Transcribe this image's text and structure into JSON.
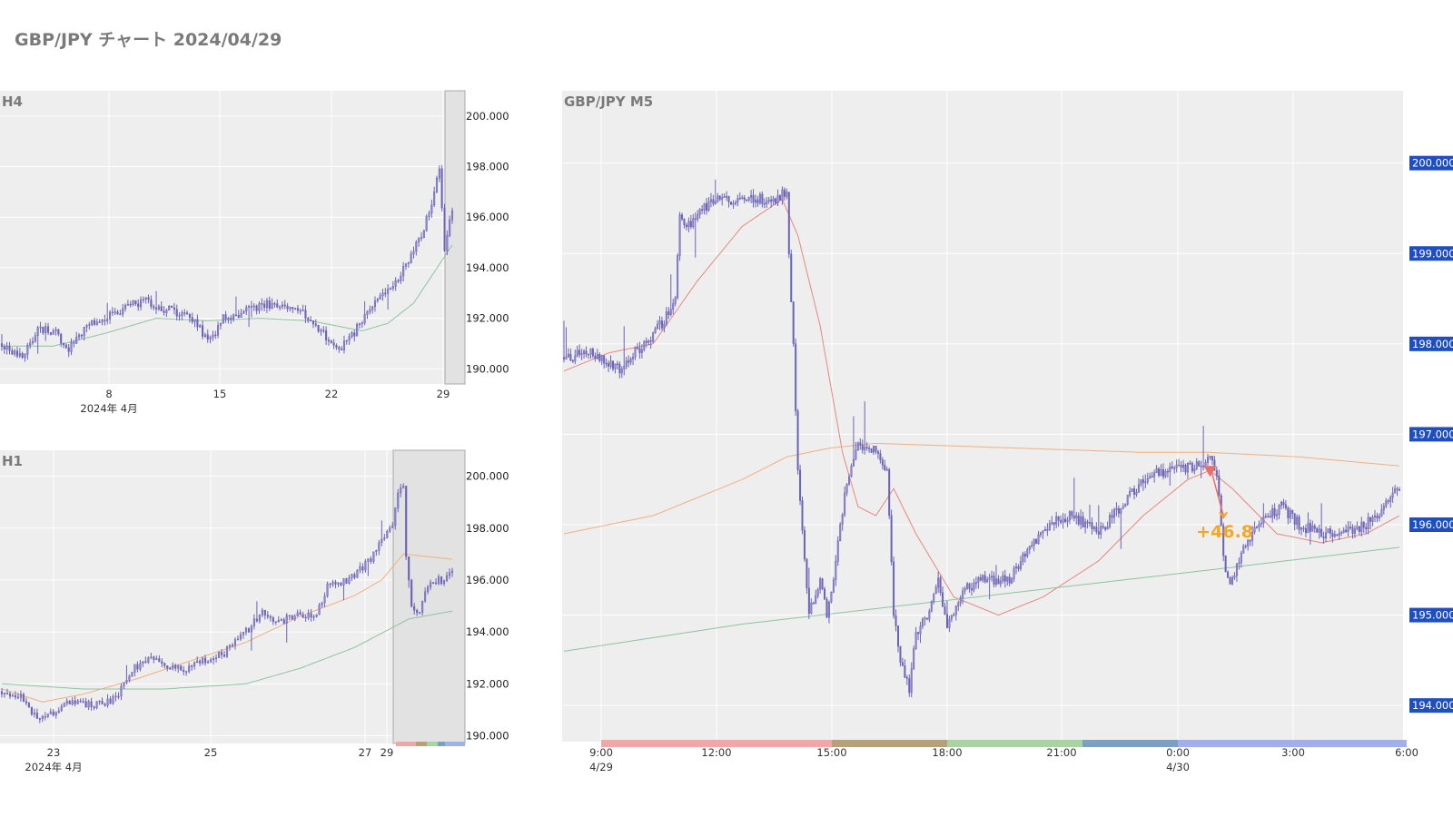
{
  "page": {
    "title": "GBP/JPY チャート 2024/04/29"
  },
  "colors": {
    "candle": "#6b63b5",
    "ma_fast": "#e8877f",
    "ma_mid": "#f0b080",
    "ma_slow": "#8cc4a0",
    "price_tag": "#1f4fbf",
    "annotation": "#f5a623",
    "plot_bg": "#eeeeee",
    "grid": "#ffffff"
  },
  "chart_data": [
    {
      "id": "h4",
      "type": "candlestick",
      "title": "H4",
      "ylim": [
        189.4,
        201.0
      ],
      "yticks": [
        190,
        192,
        194,
        196,
        198,
        200
      ],
      "ytick_labels": [
        "190.000",
        "192.000",
        "194.000",
        "196.000",
        "198.000",
        "200.000"
      ],
      "x_tick_labels": [
        "8",
        "15",
        "22",
        "29"
      ],
      "x_sub_label": "2024年 4月",
      "grid": true,
      "highlight": "last 2 bars (2024-04-29)",
      "anchors": [
        [
          0,
          191.0
        ],
        [
          8,
          190.5
        ],
        [
          14,
          191.5
        ],
        [
          20,
          191.5
        ],
        [
          26,
          190.8
        ],
        [
          34,
          191.7
        ],
        [
          45,
          192.3
        ],
        [
          55,
          192.7
        ],
        [
          65,
          192.3
        ],
        [
          75,
          192.0
        ],
        [
          80,
          191.0
        ],
        [
          86,
          192.0
        ],
        [
          95,
          192.3
        ],
        [
          105,
          192.6
        ],
        [
          115,
          192.4
        ],
        [
          120,
          192.0
        ],
        [
          126,
          191.3
        ],
        [
          132,
          190.8
        ],
        [
          138,
          191.6
        ],
        [
          145,
          192.8
        ],
        [
          152,
          193.3
        ],
        [
          158,
          194.3
        ],
        [
          163,
          195.3
        ],
        [
          168,
          197.0
        ],
        [
          170,
          198.0
        ],
        [
          172,
          194.8
        ],
        [
          175,
          196.2
        ]
      ],
      "ma": [
        {
          "color": "ma_slow",
          "anchors": [
            [
              0,
              190.9
            ],
            [
              20,
              190.9
            ],
            [
              40,
              191.4
            ],
            [
              60,
              192.0
            ],
            [
              80,
              191.9
            ],
            [
              100,
              192.0
            ],
            [
              120,
              191.9
            ],
            [
              140,
              191.5
            ],
            [
              150,
              191.8
            ],
            [
              160,
              192.6
            ],
            [
              175,
              194.9
            ]
          ]
        }
      ]
    },
    {
      "id": "h1",
      "type": "candlestick",
      "title": "H1",
      "ylim": [
        189.7,
        201.0
      ],
      "yticks": [
        190,
        192,
        194,
        196,
        198,
        200
      ],
      "ytick_labels": [
        "190.000",
        "192.000",
        "194.000",
        "196.000",
        "198.000",
        "200.000"
      ],
      "x_tick_labels": [
        "23",
        "25",
        "27",
        "29"
      ],
      "x_sub_label": "2024年 4月",
      "grid": true,
      "highlight": "2024-04-29 bars",
      "session_colors": [
        "#f2a7a7",
        "#b5a07a",
        "#a8d4a2",
        "#7ba0c4",
        "#9fb0ea"
      ],
      "anchors": [
        [
          0,
          191.7
        ],
        [
          6,
          191.6
        ],
        [
          12,
          190.8
        ],
        [
          16,
          190.6
        ],
        [
          22,
          191.2
        ],
        [
          36,
          191.2
        ],
        [
          42,
          191.4
        ],
        [
          48,
          192.6
        ],
        [
          55,
          192.9
        ],
        [
          62,
          192.7
        ],
        [
          68,
          192.6
        ],
        [
          75,
          192.9
        ],
        [
          82,
          193.2
        ],
        [
          90,
          194.0
        ],
        [
          96,
          194.8
        ],
        [
          102,
          194.3
        ],
        [
          108,
          194.7
        ],
        [
          116,
          194.6
        ],
        [
          120,
          195.8
        ],
        [
          128,
          196.0
        ],
        [
          136,
          196.8
        ],
        [
          142,
          197.8
        ],
        [
          144,
          198.2
        ],
        [
          146,
          199.4
        ],
        [
          148,
          199.6
        ],
        [
          149,
          196.8
        ],
        [
          151,
          195.0
        ],
        [
          154,
          194.8
        ],
        [
          158,
          196.0
        ],
        [
          162,
          196.0
        ],
        [
          166,
          196.2
        ]
      ],
      "ma": [
        {
          "color": "ma_mid",
          "anchors": [
            [
              0,
              191.8
            ],
            [
              15,
              191.3
            ],
            [
              30,
              191.6
            ],
            [
              50,
              192.2
            ],
            [
              70,
              192.9
            ],
            [
              90,
              193.6
            ],
            [
              110,
              194.6
            ],
            [
              130,
              195.4
            ],
            [
              140,
              196.0
            ],
            [
              148,
              197.0
            ],
            [
              166,
              196.8
            ]
          ]
        },
        {
          "color": "ma_slow",
          "anchors": [
            [
              0,
              192.0
            ],
            [
              30,
              191.8
            ],
            [
              60,
              191.8
            ],
            [
              90,
              192.0
            ],
            [
              110,
              192.6
            ],
            [
              130,
              193.4
            ],
            [
              150,
              194.5
            ],
            [
              166,
              194.8
            ]
          ]
        }
      ]
    },
    {
      "id": "m5",
      "type": "candlestick",
      "title": "GBP/JPY M5",
      "ylim": [
        193.6,
        200.8
      ],
      "yticks": [
        194,
        195,
        196,
        197,
        198,
        199,
        200
      ],
      "ytick_labels": [
        "194.000",
        "195.000",
        "196.000",
        "197.000",
        "198.000",
        "199.000",
        "200.000"
      ],
      "x_tick_labels": [
        "9:00",
        "12:00",
        "15:00",
        "18:00",
        "21:00",
        "0:00",
        "3:00",
        "6:00"
      ],
      "x_sub_labels": [
        "4/29",
        "4/30"
      ],
      "grid": true,
      "session_colors": [
        "#f2a7a7",
        "#b5a07a",
        "#a8d4a2",
        "#7ba0c4",
        "#9fb0ea"
      ],
      "annotation": {
        "text": "+46.8",
        "position": "trade exit near 196.0",
        "trade": "short"
      },
      "anchors": [
        [
          0,
          197.85
        ],
        [
          12,
          197.9
        ],
        [
          20,
          197.8
        ],
        [
          26,
          197.7
        ],
        [
          32,
          197.9
        ],
        [
          40,
          198.1
        ],
        [
          46,
          198.3
        ],
        [
          50,
          198.5
        ],
        [
          52,
          199.4
        ],
        [
          56,
          199.3
        ],
        [
          62,
          199.5
        ],
        [
          70,
          199.6
        ],
        [
          80,
          199.6
        ],
        [
          95,
          199.6
        ],
        [
          100,
          199.7
        ],
        [
          101,
          199.0
        ],
        [
          103,
          198.0
        ],
        [
          105,
          196.6
        ],
        [
          110,
          195.0
        ],
        [
          115,
          195.4
        ],
        [
          118,
          195.0
        ],
        [
          122,
          195.6
        ],
        [
          126,
          196.3
        ],
        [
          132,
          196.9
        ],
        [
          140,
          196.8
        ],
        [
          145,
          196.6
        ],
        [
          148,
          195.0
        ],
        [
          151,
          194.5
        ],
        [
          155,
          194.2
        ],
        [
          158,
          194.8
        ],
        [
          163,
          195.0
        ],
        [
          168,
          195.4
        ],
        [
          172,
          194.9
        ],
        [
          180,
          195.3
        ],
        [
          190,
          195.4
        ],
        [
          200,
          195.4
        ],
        [
          210,
          195.8
        ],
        [
          218,
          196.0
        ],
        [
          228,
          196.1
        ],
        [
          240,
          195.9
        ],
        [
          250,
          196.2
        ],
        [
          260,
          196.5
        ],
        [
          270,
          196.6
        ],
        [
          282,
          196.65
        ],
        [
          290,
          196.7
        ],
        [
          293,
          196.6
        ],
        [
          296,
          195.6
        ],
        [
          299,
          195.3
        ],
        [
          306,
          195.8
        ],
        [
          315,
          196.1
        ],
        [
          322,
          196.2
        ],
        [
          330,
          196.0
        ],
        [
          340,
          195.9
        ],
        [
          350,
          195.9
        ],
        [
          360,
          196.0
        ],
        [
          368,
          196.2
        ],
        [
          372,
          196.4
        ],
        [
          375,
          196.35
        ]
      ],
      "ma": [
        {
          "color": "ma_fast",
          "anchors": [
            [
              0,
              197.7
            ],
            [
              20,
              197.9
            ],
            [
              40,
              198.0
            ],
            [
              60,
              198.7
            ],
            [
              80,
              199.3
            ],
            [
              98,
              199.6
            ],
            [
              105,
              199.2
            ],
            [
              115,
              198.2
            ],
            [
              125,
              196.8
            ],
            [
              132,
              196.2
            ],
            [
              140,
              196.1
            ],
            [
              148,
              196.4
            ],
            [
              158,
              195.9
            ],
            [
              175,
              195.2
            ],
            [
              195,
              195.0
            ],
            [
              215,
              195.2
            ],
            [
              240,
              195.6
            ],
            [
              260,
              196.1
            ],
            [
              280,
              196.5
            ],
            [
              290,
              196.6
            ],
            [
              300,
              196.4
            ],
            [
              320,
              195.9
            ],
            [
              340,
              195.8
            ],
            [
              360,
              195.9
            ],
            [
              375,
              196.1
            ]
          ]
        },
        {
          "color": "ma_mid",
          "anchors": [
            [
              0,
              195.9
            ],
            [
              40,
              196.1
            ],
            [
              80,
              196.5
            ],
            [
              100,
              196.75
            ],
            [
              120,
              196.85
            ],
            [
              140,
              196.9
            ],
            [
              200,
              196.85
            ],
            [
              260,
              196.8
            ],
            [
              290,
              196.8
            ],
            [
              330,
              196.75
            ],
            [
              375,
              196.65
            ]
          ]
        },
        {
          "color": "ma_slow",
          "anchors": [
            [
              0,
              194.6
            ],
            [
              80,
              194.9
            ],
            [
              150,
              195.1
            ],
            [
              220,
              195.3
            ],
            [
              290,
              195.5
            ],
            [
              375,
              195.75
            ]
          ]
        }
      ]
    }
  ]
}
